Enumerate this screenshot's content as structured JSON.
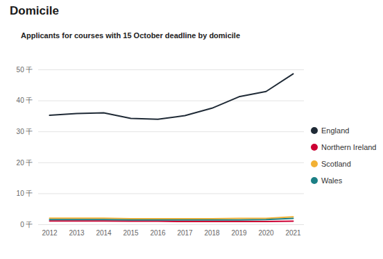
{
  "chart_data": {
    "type": "line",
    "title": "Domicile",
    "subtitle": "Applicants for courses with 15 October deadline by domicile",
    "categories": [
      "2012",
      "2013",
      "2014",
      "2015",
      "2016",
      "2017",
      "2018",
      "2019",
      "2020",
      "2021"
    ],
    "series": [
      {
        "name": "England",
        "color": "#1f2a36",
        "values": [
          35300,
          35900,
          36100,
          34300,
          34000,
          35200,
          37600,
          41300,
          43000,
          48700
        ]
      },
      {
        "name": "Northern Ireland",
        "color": "#cc0033",
        "values": [
          1200,
          1200,
          1200,
          1100,
          1100,
          1000,
          1000,
          1000,
          1000,
          1100
        ]
      },
      {
        "name": "Scotland",
        "color": "#f2b134",
        "values": [
          2100,
          2100,
          2100,
          1900,
          1900,
          1900,
          1900,
          2000,
          2000,
          2500
        ]
      },
      {
        "name": "Wales",
        "color": "#1b7f85",
        "values": [
          1600,
          1600,
          1600,
          1500,
          1500,
          1500,
          1500,
          1500,
          1600,
          2000
        ]
      }
    ],
    "ylim": [
      0,
      50000
    ],
    "yticks": [
      {
        "value": 0,
        "label": "0 千"
      },
      {
        "value": 10000,
        "label": "10 千"
      },
      {
        "value": 20000,
        "label": "20 千"
      },
      {
        "value": 30000,
        "label": "30 千"
      },
      {
        "value": 40000,
        "label": "40 千"
      },
      {
        "value": 50000,
        "label": "50 千"
      }
    ],
    "grid": true,
    "legend": "right",
    "marker": "circle"
  }
}
